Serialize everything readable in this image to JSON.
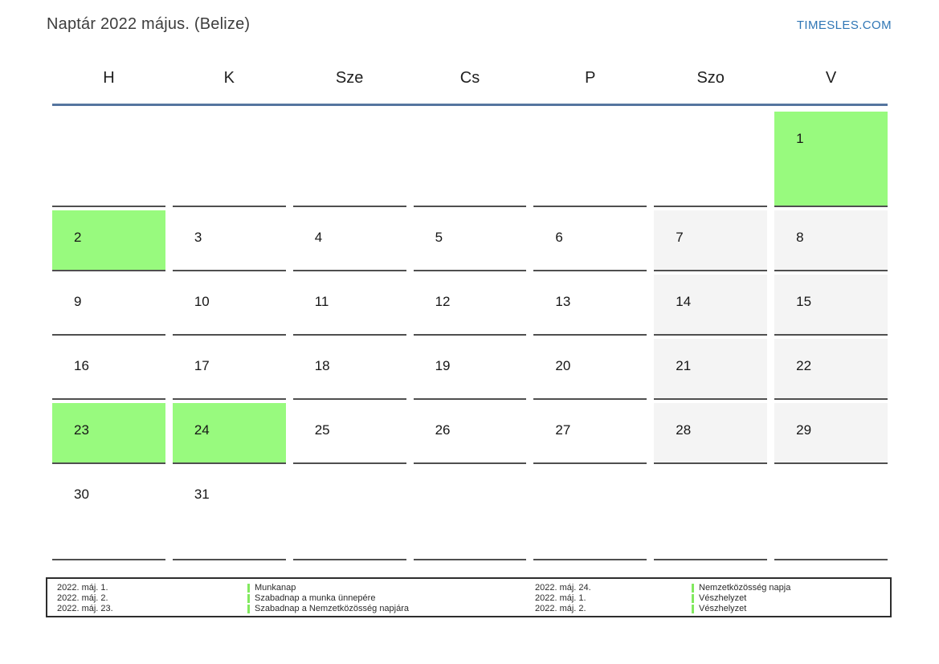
{
  "page": {
    "title": "Naptár 2022 május. (Belize)",
    "logo_text": "TIMESLES.COM"
  },
  "weekdays": [
    "H",
    "K",
    "Sze",
    "Cs",
    "P",
    "Szo",
    "V"
  ],
  "calendar": {
    "month_label": "2022 május",
    "weeks": [
      [
        "",
        "",
        "",
        "",
        "",
        "",
        "1"
      ],
      [
        "2",
        "3",
        "4",
        "5",
        "6",
        "7",
        "8"
      ],
      [
        "9",
        "10",
        "11",
        "12",
        "13",
        "14",
        "15"
      ],
      [
        "16",
        "17",
        "18",
        "19",
        "20",
        "21",
        "22"
      ],
      [
        "23",
        "24",
        "25",
        "26",
        "27",
        "28",
        "29"
      ],
      [
        "30",
        "31",
        "",
        "",
        "",
        "",
        ""
      ]
    ],
    "holiday_days": [
      "1",
      "2",
      "23",
      "24"
    ],
    "weekend_gray_days": [
      "7",
      "8",
      "14",
      "15",
      "21",
      "22",
      "28",
      "29"
    ]
  },
  "legend": {
    "left_entries": [
      {
        "date": "2022. máj. 1.",
        "label": "Munkanap"
      },
      {
        "date": "2022. máj. 2.",
        "label": "Szabadnap a munka ünnepére"
      },
      {
        "date": "2022. máj. 23.",
        "label": "Szabadnap a Nemzetközösség napjára"
      }
    ],
    "right_entries": [
      {
        "date": "2022. máj. 24.",
        "label": "Nemzetközösség napja"
      },
      {
        "date": "2022. máj. 1.",
        "label": "Vészhelyzet"
      },
      {
        "date": "2022. máj. 2.",
        "label": "Vészhelyzet"
      }
    ]
  },
  "colors": {
    "holiday_green": "#98fa7e",
    "weekend_gray": "#f4f4f4",
    "header_line_blue": "#55759f",
    "cell_border_gray": "#4f4f4f",
    "logo_blue": "#2f76b5",
    "legend_bar_green": "#82e95f"
  }
}
